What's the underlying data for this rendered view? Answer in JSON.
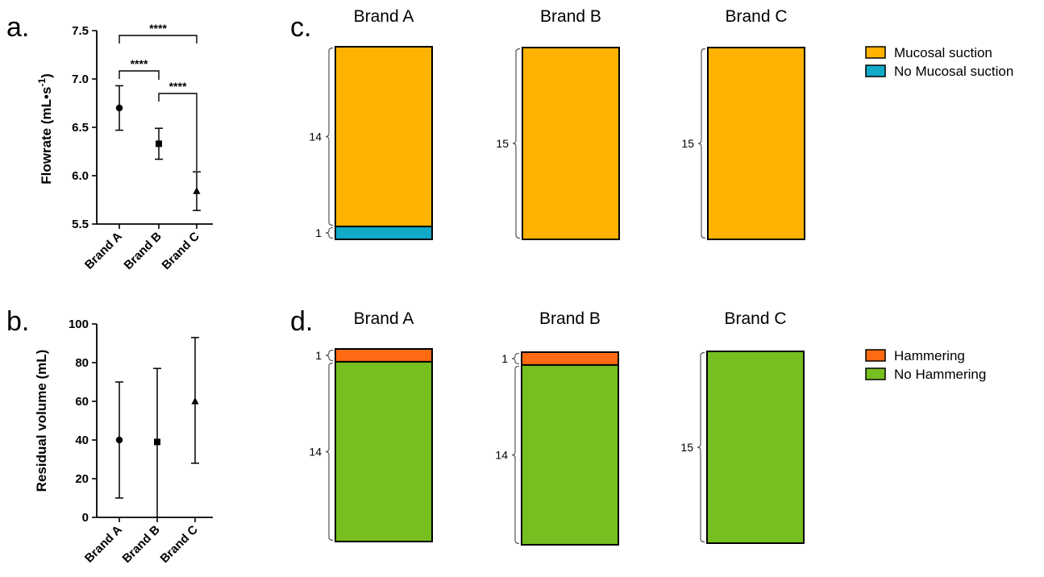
{
  "chart_data": [
    {
      "panel": "a.",
      "type": "scatter",
      "ylabel": "Flowrate (mL•s",
      "ylabel_superscript": "-1",
      "ylabel_suffix": ")",
      "ylim": [
        5.5,
        7.5
      ],
      "yticks": [
        5.5,
        6.0,
        6.5,
        7.0,
        7.5
      ],
      "ytick_labels": [
        "5.5",
        "6.0",
        "6.5",
        "7.0",
        "7.5"
      ],
      "categories": [
        "Brand A",
        "Brand B",
        "Brand C"
      ],
      "markers": [
        "circle",
        "square",
        "triangle"
      ],
      "values": [
        6.7,
        6.33,
        5.84
      ],
      "error_low": [
        6.47,
        6.17,
        5.64
      ],
      "error_high": [
        6.93,
        6.49,
        6.04
      ],
      "significance": [
        {
          "from": 0,
          "to": 2,
          "label": "****"
        },
        {
          "from": 0,
          "to": 1,
          "label": "****"
        },
        {
          "from": 1,
          "to": 2,
          "label": "****"
        }
      ]
    },
    {
      "panel": "b.",
      "type": "scatter",
      "ylabel": "Residual volume (mL)",
      "ylim": [
        0,
        100
      ],
      "yticks": [
        0,
        20,
        40,
        60,
        80,
        100
      ],
      "ytick_labels": [
        "0",
        "20",
        "40",
        "60",
        "80",
        "100"
      ],
      "categories": [
        "Brand A",
        "Brand B",
        "Brand C"
      ],
      "markers": [
        "circle",
        "square",
        "triangle"
      ],
      "values": [
        40,
        39,
        60
      ],
      "error_low": [
        10,
        0,
        28
      ],
      "error_high": [
        70,
        77,
        93
      ]
    },
    {
      "panel": "c.",
      "type": "bar",
      "stacked": true,
      "categories": [
        "Brand A",
        "Brand B",
        "Brand C"
      ],
      "series": [
        {
          "name": "Mucosal suction",
          "color": "#FFB300",
          "values": [
            14,
            15,
            15
          ]
        },
        {
          "name": "No Mucosal suction",
          "color": "#11AAC9",
          "values": [
            1,
            0,
            0
          ]
        }
      ]
    },
    {
      "panel": "d.",
      "type": "bar",
      "stacked": true,
      "categories": [
        "Brand A",
        "Brand B",
        "Brand C"
      ],
      "series": [
        {
          "name": "Hammering",
          "color": "#FF6A13",
          "values": [
            1,
            1,
            0
          ]
        },
        {
          "name": "No Hammering",
          "color": "#77BE20",
          "values": [
            14,
            14,
            15
          ]
        }
      ]
    }
  ]
}
